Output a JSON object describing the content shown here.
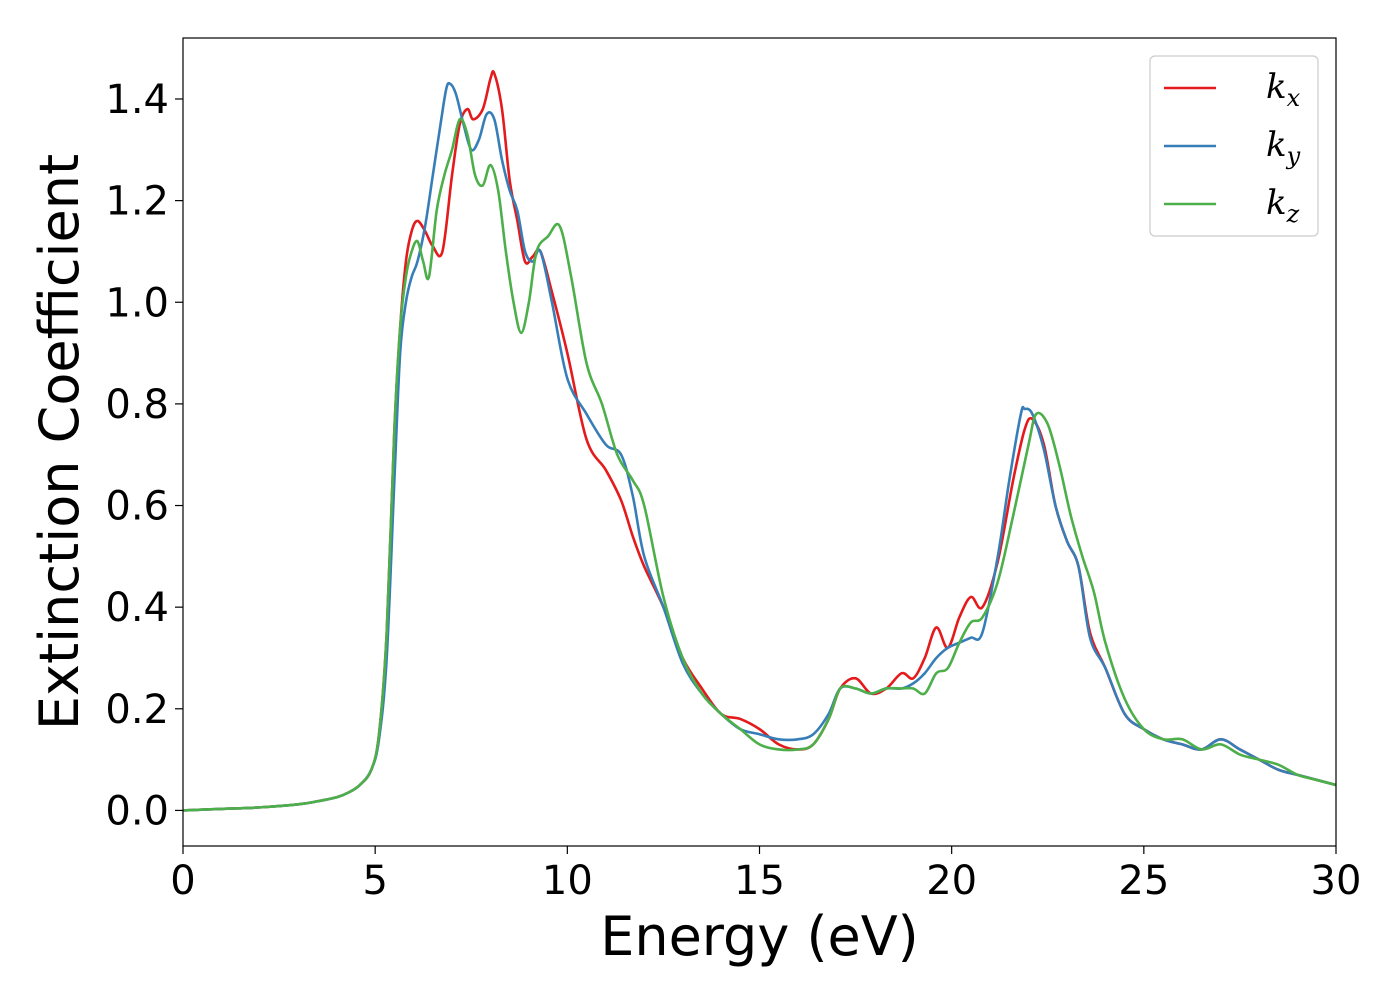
{
  "chart_data": {
    "type": "line",
    "title": "",
    "xlabel": "Energy (eV)",
    "ylabel": "Extinction Coefficient",
    "xlim": [
      0,
      30
    ],
    "ylim": [
      -0.07,
      1.52
    ],
    "xticks": [
      "0",
      "5",
      "10",
      "15",
      "20",
      "25",
      "30"
    ],
    "yticks": [
      "0.0",
      "0.2",
      "0.4",
      "0.6",
      "0.8",
      "1.0",
      "1.2",
      "1.4"
    ],
    "grid": false,
    "legend_position": "top-right",
    "series": [
      {
        "name": "k_x",
        "legend_base": "k",
        "legend_sub": "x",
        "color": "#e41a1c",
        "x": [
          0,
          1,
          2,
          3,
          3.5,
          4,
          4.3,
          4.6,
          4.9,
          5.1,
          5.3,
          5.5,
          5.65,
          5.8,
          5.95,
          6.1,
          6.3,
          6.5,
          6.75,
          7.0,
          7.2,
          7.4,
          7.55,
          7.8,
          8.0,
          8.1,
          8.3,
          8.5,
          8.7,
          8.9,
          9.1,
          9.3,
          9.6,
          10.0,
          10.5,
          11.0,
          11.4,
          11.7,
          12.0,
          12.5,
          13.0,
          13.5,
          14.0,
          14.5,
          15.0,
          15.5,
          16.0,
          16.4,
          16.8,
          17.1,
          17.5,
          17.9,
          18.3,
          18.7,
          19.0,
          19.3,
          19.6,
          19.9,
          20.2,
          20.5,
          20.8,
          21.2,
          21.6,
          21.9,
          22.1,
          22.4,
          22.7,
          23.0,
          23.3,
          23.6,
          24.0,
          24.5,
          25.0,
          25.5,
          26.0,
          26.5,
          27.0,
          27.5,
          28.0,
          28.5,
          29.0,
          29.5,
          30.0
        ],
        "y": [
          0.0,
          0.003,
          0.006,
          0.012,
          0.018,
          0.026,
          0.035,
          0.05,
          0.08,
          0.15,
          0.35,
          0.75,
          0.95,
          1.08,
          1.14,
          1.16,
          1.14,
          1.11,
          1.1,
          1.25,
          1.35,
          1.38,
          1.36,
          1.38,
          1.44,
          1.45,
          1.38,
          1.24,
          1.16,
          1.08,
          1.09,
          1.1,
          1.02,
          0.9,
          0.73,
          0.67,
          0.61,
          0.54,
          0.48,
          0.4,
          0.3,
          0.24,
          0.19,
          0.18,
          0.16,
          0.13,
          0.12,
          0.13,
          0.18,
          0.24,
          0.26,
          0.23,
          0.24,
          0.27,
          0.26,
          0.3,
          0.36,
          0.32,
          0.38,
          0.42,
          0.4,
          0.49,
          0.65,
          0.75,
          0.77,
          0.72,
          0.6,
          0.53,
          0.48,
          0.35,
          0.28,
          0.19,
          0.16,
          0.14,
          0.13,
          0.12,
          0.14,
          0.12,
          0.1,
          0.08,
          0.07,
          0.06,
          0.05
        ]
      },
      {
        "name": "k_y",
        "legend_base": "k",
        "legend_sub": "y",
        "color": "#377eb8",
        "x": [
          0,
          1,
          2,
          3,
          3.5,
          4,
          4.3,
          4.6,
          4.9,
          5.1,
          5.3,
          5.5,
          5.65,
          5.8,
          5.95,
          6.1,
          6.3,
          6.5,
          6.7,
          6.85,
          6.95,
          7.1,
          7.3,
          7.5,
          7.7,
          7.9,
          8.1,
          8.3,
          8.5,
          8.7,
          8.9,
          9.1,
          9.3,
          9.6,
          10.0,
          10.5,
          11.0,
          11.4,
          11.7,
          12.0,
          12.5,
          13.0,
          13.5,
          14.0,
          14.5,
          15.0,
          15.5,
          16.0,
          16.4,
          16.8,
          17.1,
          17.5,
          17.9,
          18.3,
          18.7,
          19.0,
          19.3,
          19.6,
          19.9,
          20.2,
          20.5,
          20.8,
          21.2,
          21.5,
          21.8,
          21.9,
          22.1,
          22.4,
          22.7,
          23.0,
          23.3,
          23.6,
          24.0,
          24.5,
          25.0,
          25.5,
          26.0,
          26.5,
          27.0,
          27.5,
          28.0,
          28.5,
          29.0,
          29.5,
          30.0
        ],
        "y": [
          0.0,
          0.003,
          0.006,
          0.012,
          0.018,
          0.026,
          0.035,
          0.05,
          0.08,
          0.14,
          0.3,
          0.65,
          0.9,
          1.0,
          1.05,
          1.08,
          1.15,
          1.25,
          1.35,
          1.42,
          1.43,
          1.41,
          1.35,
          1.3,
          1.32,
          1.37,
          1.36,
          1.28,
          1.22,
          1.18,
          1.1,
          1.08,
          1.1,
          1.0,
          0.85,
          0.78,
          0.72,
          0.7,
          0.62,
          0.5,
          0.4,
          0.29,
          0.23,
          0.19,
          0.16,
          0.15,
          0.14,
          0.14,
          0.15,
          0.19,
          0.24,
          0.24,
          0.23,
          0.24,
          0.24,
          0.25,
          0.27,
          0.3,
          0.32,
          0.33,
          0.34,
          0.35,
          0.5,
          0.65,
          0.78,
          0.79,
          0.78,
          0.71,
          0.6,
          0.53,
          0.48,
          0.34,
          0.28,
          0.19,
          0.16,
          0.14,
          0.13,
          0.12,
          0.14,
          0.12,
          0.1,
          0.08,
          0.07,
          0.06,
          0.05
        ]
      },
      {
        "name": "k_z",
        "legend_base": "k",
        "legend_sub": "z",
        "color": "#4daf4a",
        "x": [
          0,
          1,
          2,
          3,
          3.5,
          4,
          4.3,
          4.6,
          4.9,
          5.1,
          5.3,
          5.5,
          5.65,
          5.8,
          5.95,
          6.1,
          6.25,
          6.4,
          6.6,
          6.8,
          7.0,
          7.2,
          7.4,
          7.6,
          7.8,
          8.0,
          8.2,
          8.4,
          8.6,
          8.8,
          9.0,
          9.2,
          9.5,
          9.8,
          10.1,
          10.5,
          10.9,
          11.3,
          11.7,
          12.0,
          12.5,
          13.0,
          13.5,
          14.0,
          14.5,
          15.0,
          15.5,
          16.0,
          16.4,
          16.8,
          17.1,
          17.5,
          17.9,
          18.3,
          18.7,
          19.0,
          19.3,
          19.6,
          19.9,
          20.2,
          20.5,
          20.8,
          21.2,
          21.6,
          22.0,
          22.2,
          22.5,
          22.8,
          23.1,
          23.4,
          23.7,
          24.0,
          24.5,
          25.0,
          25.5,
          26.0,
          26.5,
          27.0,
          27.5,
          28.0,
          28.5,
          29.0,
          29.5,
          30.0
        ],
        "y": [
          0.0,
          0.003,
          0.006,
          0.012,
          0.018,
          0.026,
          0.035,
          0.05,
          0.08,
          0.15,
          0.35,
          0.75,
          0.95,
          1.05,
          1.1,
          1.12,
          1.08,
          1.05,
          1.18,
          1.25,
          1.3,
          1.36,
          1.33,
          1.25,
          1.23,
          1.27,
          1.22,
          1.1,
          1.0,
          0.94,
          1.0,
          1.1,
          1.13,
          1.15,
          1.05,
          0.88,
          0.8,
          0.7,
          0.65,
          0.6,
          0.42,
          0.3,
          0.23,
          0.19,
          0.16,
          0.13,
          0.12,
          0.12,
          0.13,
          0.18,
          0.24,
          0.24,
          0.23,
          0.24,
          0.24,
          0.24,
          0.23,
          0.27,
          0.28,
          0.33,
          0.37,
          0.38,
          0.45,
          0.58,
          0.72,
          0.78,
          0.76,
          0.68,
          0.58,
          0.5,
          0.43,
          0.33,
          0.22,
          0.16,
          0.14,
          0.14,
          0.12,
          0.13,
          0.11,
          0.1,
          0.09,
          0.07,
          0.06,
          0.05
        ]
      }
    ]
  }
}
